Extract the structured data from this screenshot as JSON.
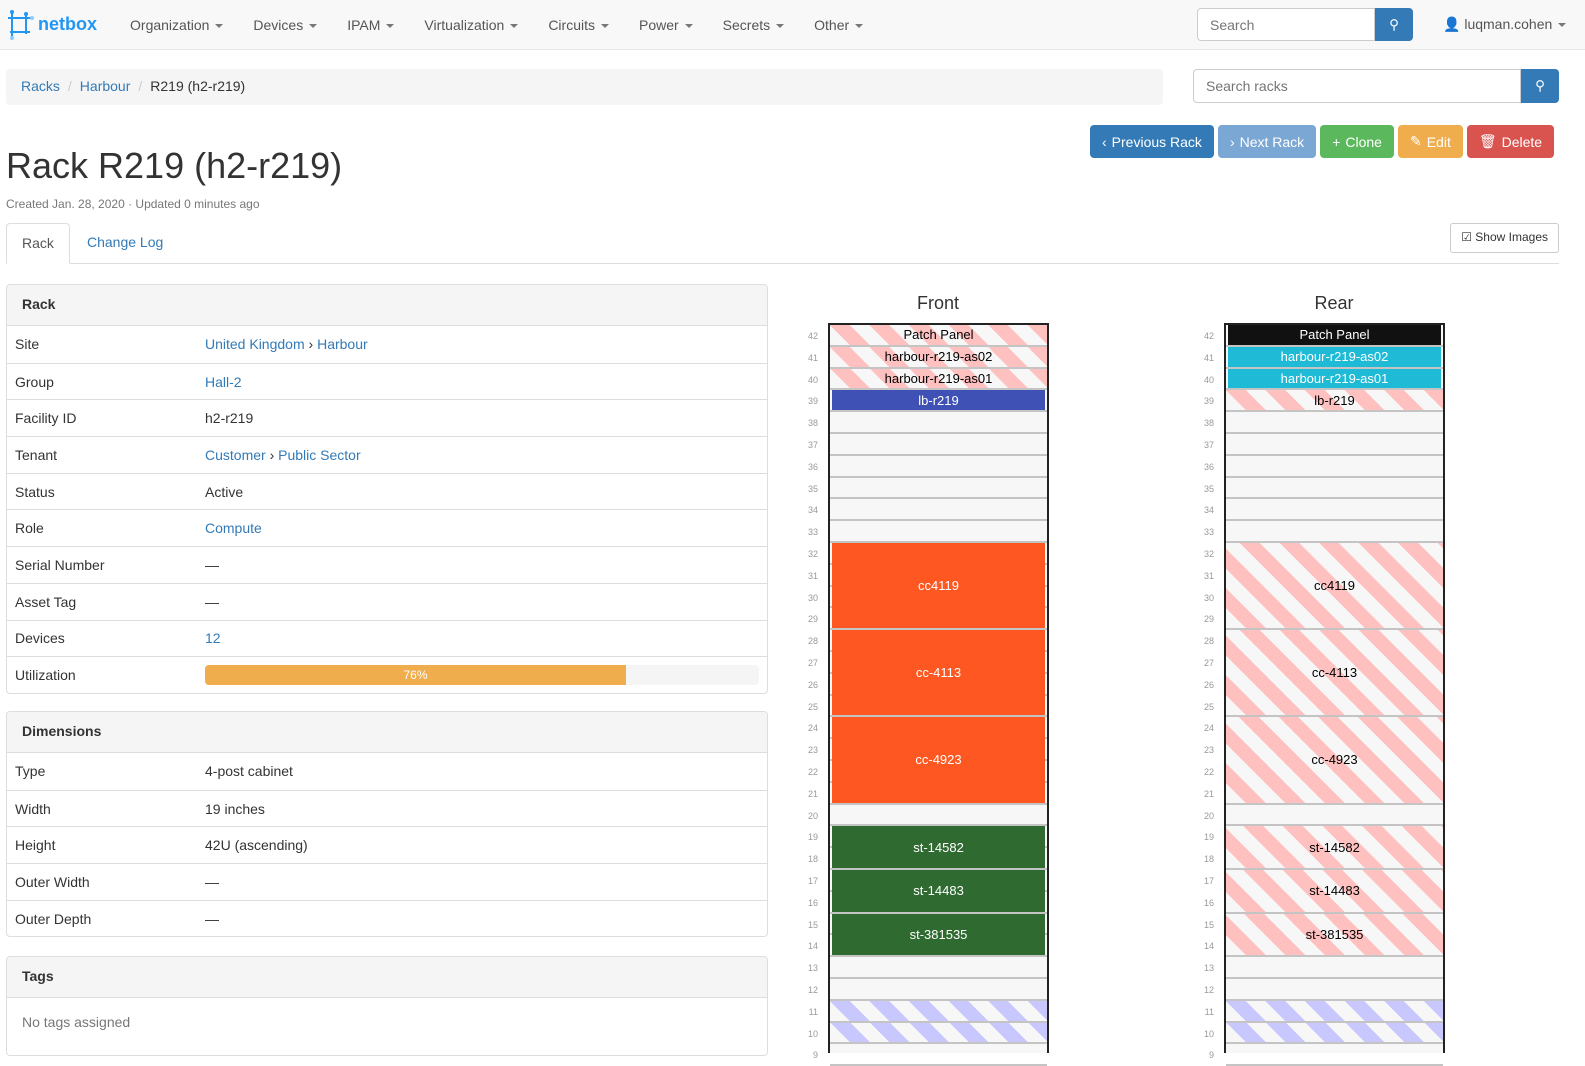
{
  "nav": {
    "brand": "netbox",
    "menus": [
      "Organization",
      "Devices",
      "IPAM",
      "Virtualization",
      "Circuits",
      "Power",
      "Secrets",
      "Other"
    ],
    "search_placeholder": "Search",
    "user": "luqman.cohen"
  },
  "breadcrumb": [
    "Racks",
    "Harbour",
    "R219 (h2-r219)"
  ],
  "rack_search_placeholder": "Search racks",
  "buttons": [
    {
      "label": "Previous Rack",
      "icon": "chevron-left-icon",
      "color": "#337ab7",
      "glyph": "‹"
    },
    {
      "label": "Next Rack",
      "icon": "chevron-right-icon",
      "color": "#7ba7d4",
      "glyph": "›"
    },
    {
      "label": "Clone",
      "icon": "plus-icon",
      "color": "#5cb85c",
      "glyph": "+"
    },
    {
      "label": "Edit",
      "icon": "pencil-icon",
      "color": "#f0ad4e",
      "glyph": "✎"
    },
    {
      "label": "Delete",
      "icon": "trash-icon",
      "color": "#d9534f",
      "glyph": "🗑"
    }
  ],
  "title": "Rack R219 (h2-r219)",
  "meta": "Created Jan. 28, 2020 · Updated 0 minutes ago",
  "tabs": [
    "Rack",
    "Change Log"
  ],
  "show_images": "Show Images",
  "rack_panel": {
    "heading": "Rack",
    "rows": [
      {
        "k": "Site",
        "v": [
          "United Kingdom",
          "Harbour"
        ],
        "link": true
      },
      {
        "k": "Group",
        "v": [
          "Hall-2"
        ],
        "link": true
      },
      {
        "k": "Facility ID",
        "v": [
          "h2-r219"
        ]
      },
      {
        "k": "Tenant",
        "v": [
          "Customer",
          "Public Sector"
        ],
        "link": true
      },
      {
        "k": "Status",
        "v": [
          "Active"
        ]
      },
      {
        "k": "Role",
        "v": [
          "Compute"
        ],
        "link": true
      },
      {
        "k": "Serial Number",
        "v": [
          "—"
        ]
      },
      {
        "k": "Asset Tag",
        "v": [
          "—"
        ]
      },
      {
        "k": "Devices",
        "v": [
          "12"
        ],
        "link": true
      }
    ],
    "utilization_label": "Utilization",
    "utilization": 76,
    "utilization_text": "76%"
  },
  "dimensions": {
    "heading": "Dimensions",
    "rows": [
      {
        "k": "Type",
        "v": "4-post cabinet"
      },
      {
        "k": "Width",
        "v": "19 inches"
      },
      {
        "k": "Height",
        "v": "42U (ascending)"
      },
      {
        "k": "Outer Width",
        "v": "—"
      },
      {
        "k": "Outer Depth",
        "v": "—"
      }
    ]
  },
  "tags": {
    "heading": "Tags",
    "empty": "No tags assigned"
  },
  "elevations": [
    {
      "title": "Front",
      "devices": [
        {
          "label": "Patch Panel",
          "top": 42,
          "units": 1,
          "style": "stripe"
        },
        {
          "label": "harbour-r219-as02",
          "top": 41,
          "units": 1,
          "style": "stripe"
        },
        {
          "label": "harbour-r219-as01",
          "top": 40,
          "units": 1,
          "style": "stripe"
        },
        {
          "label": "lb-r219",
          "top": 39,
          "units": 1,
          "color": "#3f51b5"
        },
        {
          "label": "cc4119",
          "top": 32,
          "units": 4,
          "color": "#ff5722"
        },
        {
          "label": "cc-4113",
          "top": 28,
          "units": 4,
          "color": "#ff5722"
        },
        {
          "label": "cc-4923",
          "top": 24,
          "units": 4,
          "color": "#ff5722"
        },
        {
          "label": "st-14582",
          "top": 19,
          "units": 2,
          "color": "#2f6a31"
        },
        {
          "label": "st-14483",
          "top": 17,
          "units": 2,
          "color": "#2f6a31"
        },
        {
          "label": "st-381535",
          "top": 15,
          "units": 2,
          "color": "#2f6a31"
        },
        {
          "label": "",
          "top": 11,
          "units": 1,
          "style": "reserved"
        },
        {
          "label": "",
          "top": 10,
          "units": 1,
          "style": "reserved"
        }
      ]
    },
    {
      "title": "Rear",
      "devices": [
        {
          "label": "Patch Panel",
          "top": 42,
          "units": 1,
          "color": "#111111"
        },
        {
          "label": "harbour-r219-as02",
          "top": 41,
          "units": 1,
          "color": "#1fbad6"
        },
        {
          "label": "harbour-r219-as01",
          "top": 40,
          "units": 1,
          "color": "#1fbad6"
        },
        {
          "label": "lb-r219",
          "top": 39,
          "units": 1,
          "style": "stripe"
        },
        {
          "label": "cc4119",
          "top": 32,
          "units": 4,
          "style": "stripe"
        },
        {
          "label": "cc-4113",
          "top": 28,
          "units": 4,
          "style": "stripe"
        },
        {
          "label": "cc-4923",
          "top": 24,
          "units": 4,
          "style": "stripe"
        },
        {
          "label": "st-14582",
          "top": 19,
          "units": 2,
          "style": "stripe"
        },
        {
          "label": "st-14483",
          "top": 17,
          "units": 2,
          "style": "stripe"
        },
        {
          "label": "st-381535",
          "top": 15,
          "units": 2,
          "style": "stripe"
        },
        {
          "label": "",
          "top": 11,
          "units": 1,
          "style": "reserved"
        },
        {
          "label": "",
          "top": 10,
          "units": 1,
          "style": "reserved"
        }
      ]
    }
  ]
}
